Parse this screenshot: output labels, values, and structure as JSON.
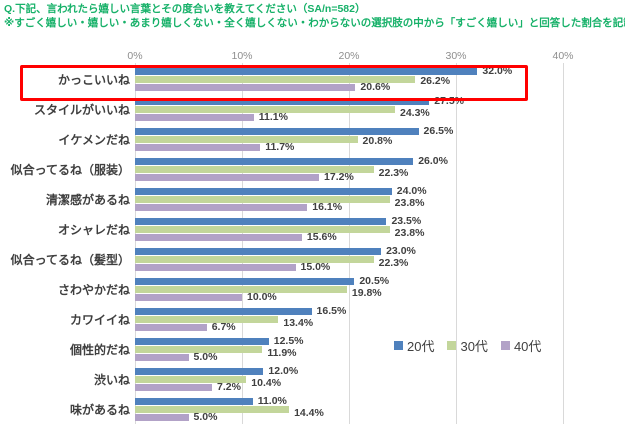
{
  "header": {
    "question_line": "Q.下記、言われたら嬉しい言葉とその度合いを教えてください（SA/n=582）",
    "note_line": "※すごく嬉しい・嬉しい・あまり嬉しくない・全く嬉しくない・わからないの選択肢の中から「すごく嬉しい」と回答した割合を記載。",
    "title_color": "#17B169"
  },
  "chart_data": {
    "type": "bar",
    "orientation": "horizontal",
    "title": "",
    "xlabel": "",
    "ylabel": "",
    "xlim": [
      0,
      40
    ],
    "axis_ticks": [
      "0%",
      "10%",
      "20%",
      "30%",
      "40%"
    ],
    "grid": true,
    "legend_position": "right-middle",
    "value_label_format": "{value}%",
    "categories": [
      "かっこいいね",
      "スタイルがいいね",
      "イケメンだね",
      "似合ってるね（服装）",
      "清潔感があるね",
      "オシャレだね",
      "似合ってるね（髪型）",
      "さわやかだね",
      "カワイイね",
      "個性的だね",
      "渋いね",
      "味があるね"
    ],
    "series": [
      {
        "name": "20代",
        "color": "#4F81BD",
        "values": [
          32.0,
          27.5,
          26.5,
          26.0,
          24.0,
          23.5,
          23.0,
          20.5,
          16.5,
          12.5,
          12.0,
          11.0
        ]
      },
      {
        "name": "30代",
        "color": "#C3D69B",
        "values": [
          26.2,
          24.3,
          20.8,
          22.3,
          23.8,
          23.8,
          22.3,
          19.8,
          13.4,
          11.9,
          10.4,
          14.4
        ]
      },
      {
        "name": "40代",
        "color": "#B2A2C7",
        "values": [
          20.6,
          11.1,
          11.7,
          17.2,
          16.1,
          15.6,
          15.0,
          10.0,
          6.7,
          5.0,
          7.2,
          5.0
        ]
      }
    ],
    "highlight": {
      "category": "かっこいいね",
      "color": "#FF0000"
    }
  }
}
